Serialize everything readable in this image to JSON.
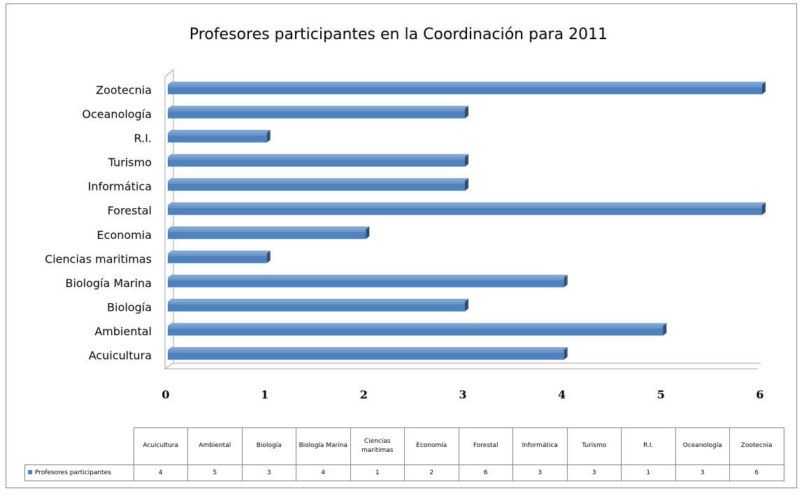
{
  "chart_data": {
    "type": "bar",
    "orientation": "horizontal",
    "title": "Profesores participantes en la Coordinación para 2011",
    "categories": [
      "Acuicultura",
      "Ambiental",
      "Biología",
      "Biología Marina",
      "Ciencias maritimas",
      "Economia",
      "Forestal",
      "Informática",
      "Turismo",
      "R.I.",
      "Oceanología",
      "Zootecnia"
    ],
    "series": [
      {
        "name": "Profesores participantes",
        "color": "#4f81bd",
        "values": [
          4,
          5,
          3,
          4,
          1,
          2,
          6,
          3,
          3,
          1,
          3,
          6
        ]
      }
    ],
    "xlim": [
      0,
      6
    ],
    "xticks": [
      0,
      1,
      2,
      3,
      4,
      5,
      6
    ],
    "grid": false,
    "table_categories": [
      "Acuicultura",
      "Ambiental",
      "Biología",
      "Biología Marina",
      "Ciencias maritimas",
      "Economía",
      "Forestal",
      "Informática",
      "Turismo",
      "R.I.",
      "Oceanología",
      "Zootecnia"
    ]
  }
}
